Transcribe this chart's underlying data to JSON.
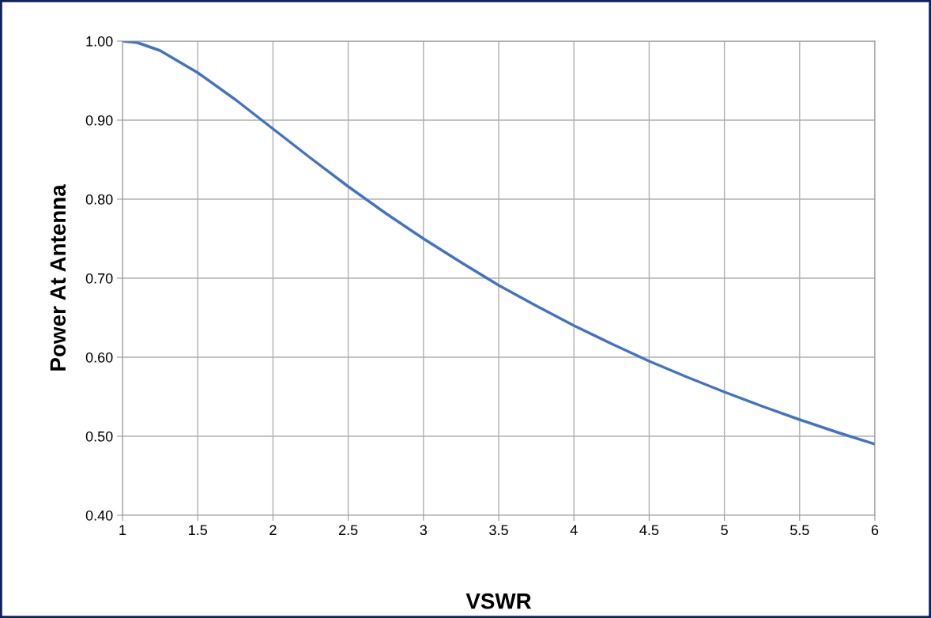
{
  "chart_data": {
    "type": "line",
    "xlabel": "VSWR",
    "ylabel": "Power At Antenna",
    "x": [
      1,
      1.1,
      1.25,
      1.5,
      1.75,
      2,
      2.25,
      2.5,
      2.75,
      3,
      3.25,
      3.5,
      3.75,
      4,
      4.25,
      4.5,
      4.75,
      5,
      5.25,
      5.5,
      5.75,
      6
    ],
    "series": [
      {
        "color": "#4472c4",
        "values": [
          1.0,
          0.998,
          0.988,
          0.96,
          0.926,
          0.889,
          0.852,
          0.816,
          0.782,
          0.75,
          0.72,
          0.691,
          0.665,
          0.64,
          0.617,
          0.595,
          0.575,
          0.556,
          0.538,
          0.521,
          0.505,
          0.49
        ]
      }
    ],
    "xlim": [
      1,
      6
    ],
    "xticks": [
      1,
      1.5,
      2,
      2.5,
      3,
      3.5,
      4,
      4.5,
      5,
      5.5,
      6
    ],
    "ylim": [
      0.4,
      1.0
    ],
    "yticks": [
      {
        "value": 0.4,
        "label": "0.40"
      },
      {
        "value": 0.5,
        "label": "0.50"
      },
      {
        "value": 0.6,
        "label": "0.60"
      },
      {
        "value": 0.7,
        "label": "0.70"
      },
      {
        "value": 0.8,
        "label": "0.80"
      },
      {
        "value": 0.9,
        "label": "0.90"
      },
      {
        "value": 1.0,
        "label": "1.00"
      }
    ],
    "grid": true,
    "legend": false,
    "marker": "none",
    "line_style": "solid"
  }
}
